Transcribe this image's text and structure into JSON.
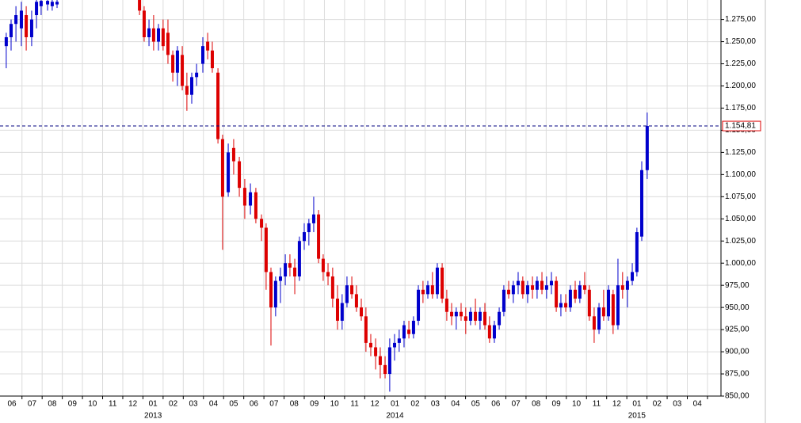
{
  "chart_data": {
    "type": "candlestick",
    "x": [
      -0.28,
      -0.04,
      0.2,
      0.47,
      0.71,
      0.98,
      1.22,
      1.45,
      1.77,
      2.0,
      2.24,
      6.33,
      6.56,
      6.8,
      7.03,
      7.27,
      7.5,
      7.74,
      7.98,
      8.21,
      8.45,
      8.68,
      8.92,
      9.16,
      9.47,
      9.71,
      9.94,
      10.22,
      10.45,
      10.73,
      11.0,
      11.28,
      11.55,
      11.83,
      12.1,
      12.38,
      12.61,
      12.85,
      13.08,
      13.32,
      13.56,
      13.79,
      14.03,
      14.26,
      14.5,
      14.73,
      14.97,
      15.21,
      15.44,
      15.68,
      15.91,
      16.15,
      16.38,
      16.62,
      16.86,
      17.09,
      17.33,
      17.56,
      17.8,
      18.04,
      18.27,
      18.51,
      18.74,
      18.98,
      19.21,
      19.45,
      19.69,
      19.92,
      20.16,
      20.39,
      20.63,
      20.86,
      21.1,
      21.34,
      21.57,
      21.81,
      22.04,
      22.28,
      22.51,
      22.75,
      22.99,
      23.22,
      23.46,
      23.69,
      23.93,
      24.17,
      24.4,
      24.64,
      24.87,
      25.11,
      25.34,
      25.58,
      25.82,
      26.05,
      26.29,
      26.52,
      26.76,
      27.0,
      27.23,
      27.47,
      27.7,
      27.94,
      28.17,
      28.41,
      28.64,
      28.88,
      29.12,
      29.35,
      29.59,
      29.82,
      30.06,
      30.29,
      30.53,
      30.77,
      31.0,
      31.24,
      31.51
    ],
    "open": [
      1245,
      1255,
      1270,
      1265,
      1280,
      1255,
      1280,
      1290,
      1292,
      1290,
      1292,
      1300,
      1285,
      1255,
      1265,
      1250,
      1265,
      1260,
      1235,
      1215,
      1235,
      1200,
      1190,
      1210,
      1225,
      1250,
      1240,
      1215,
      1140,
      1080,
      1130,
      1115,
      1085,
      1065,
      1080,
      1050,
      1040,
      990,
      950,
      980,
      985,
      1000,
      995,
      985,
      1025,
      1035,
      1045,
      1055,
      1005,
      990,
      985,
      960,
      935,
      955,
      975,
      965,
      950,
      940,
      910,
      905,
      895,
      885,
      875,
      905,
      910,
      915,
      925,
      920,
      935,
      970,
      965,
      975,
      965,
      995,
      960,
      945,
      940,
      945,
      940,
      935,
      945,
      935,
      945,
      930,
      915,
      930,
      945,
      970,
      965,
      975,
      980,
      965,
      975,
      970,
      980,
      970,
      975,
      980,
      950,
      955,
      950,
      970,
      960,
      975,
      970,
      940,
      925,
      950,
      940,
      965,
      930,
      975,
      970,
      980,
      990,
      1030,
      1105
    ],
    "high": [
      1260,
      1275,
      1290,
      1295,
      1290,
      1285,
      1300,
      1300,
      1300,
      1300,
      1300,
      1305,
      1290,
      1275,
      1280,
      1270,
      1275,
      1275,
      1240,
      1245,
      1245,
      1215,
      1215,
      1225,
      1255,
      1260,
      1250,
      1220,
      1145,
      1135,
      1140,
      1120,
      1095,
      1090,
      1085,
      1055,
      1045,
      995,
      985,
      995,
      1010,
      1010,
      1005,
      1030,
      1045,
      1050,
      1075,
      1060,
      1010,
      1000,
      995,
      975,
      965,
      985,
      985,
      975,
      960,
      950,
      920,
      915,
      905,
      895,
      915,
      920,
      925,
      935,
      935,
      940,
      975,
      980,
      980,
      990,
      1000,
      1000,
      970,
      955,
      950,
      955,
      950,
      950,
      960,
      950,
      955,
      940,
      935,
      950,
      975,
      980,
      980,
      990,
      985,
      980,
      985,
      985,
      990,
      985,
      990,
      985,
      965,
      965,
      975,
      980,
      980,
      990,
      975,
      950,
      955,
      970,
      975,
      970,
      1005,
      990,
      985,
      1000,
      1040,
      1115,
      1170
    ],
    "low": [
      1220,
      1240,
      1250,
      1245,
      1240,
      1245,
      1265,
      1280,
      1285,
      1285,
      1288,
      1280,
      1250,
      1245,
      1240,
      1240,
      1240,
      1225,
      1205,
      1200,
      1195,
      1172,
      1180,
      1200,
      1215,
      1230,
      1215,
      1135,
      1015,
      1075,
      1100,
      1075,
      1050,
      1055,
      1045,
      1025,
      970,
      907,
      940,
      955,
      975,
      985,
      965,
      980,
      1015,
      1020,
      1035,
      1000,
      980,
      975,
      950,
      925,
      925,
      950,
      960,
      945,
      935,
      900,
      895,
      880,
      870,
      870,
      855,
      890,
      900,
      905,
      915,
      915,
      930,
      955,
      960,
      960,
      960,
      955,
      935,
      930,
      925,
      935,
      920,
      930,
      930,
      925,
      925,
      910,
      910,
      925,
      940,
      960,
      955,
      965,
      960,
      955,
      960,
      960,
      965,
      960,
      965,
      945,
      940,
      945,
      945,
      955,
      955,
      965,
      935,
      910,
      920,
      935,
      935,
      920,
      925,
      960,
      950,
      975,
      985,
      1025,
      1095
    ],
    "close": [
      1255,
      1270,
      1280,
      1285,
      1255,
      1275,
      1295,
      1296,
      1296,
      1295,
      1295,
      1285,
      1255,
      1265,
      1250,
      1265,
      1245,
      1235,
      1215,
      1240,
      1200,
      1190,
      1210,
      1215,
      1245,
      1240,
      1220,
      1140,
      1075,
      1125,
      1115,
      1085,
      1065,
      1080,
      1050,
      1040,
      990,
      950,
      980,
      985,
      1000,
      995,
      985,
      1025,
      1035,
      1045,
      1055,
      1005,
      990,
      985,
      960,
      935,
      955,
      975,
      965,
      950,
      940,
      910,
      905,
      895,
      885,
      875,
      905,
      910,
      915,
      930,
      920,
      935,
      970,
      965,
      975,
      965,
      995,
      960,
      945,
      940,
      945,
      940,
      935,
      945,
      935,
      945,
      930,
      915,
      930,
      945,
      970,
      965,
      975,
      980,
      965,
      975,
      970,
      980,
      970,
      975,
      980,
      950,
      955,
      950,
      970,
      960,
      975,
      970,
      940,
      925,
      950,
      940,
      970,
      930,
      975,
      970,
      980,
      990,
      1035,
      1105,
      1154.81
    ],
    "up_color": "#0000cc",
    "down_color": "#dd0000",
    "xlim": [
      -0.59,
      35.17
    ],
    "ylim": [
      850,
      1297
    ],
    "xticks": [
      {
        "value": 0,
        "label": "06"
      },
      {
        "value": 1,
        "label": "07"
      },
      {
        "value": 2,
        "label": "08"
      },
      {
        "value": 3,
        "label": "09"
      },
      {
        "value": 4,
        "label": "10"
      },
      {
        "value": 5,
        "label": "11"
      },
      {
        "value": 6,
        "label": "12"
      },
      {
        "value": 7,
        "label": "01"
      },
      {
        "value": 8,
        "label": "02"
      },
      {
        "value": 9,
        "label": "03"
      },
      {
        "value": 10,
        "label": "04"
      },
      {
        "value": 11,
        "label": "05"
      },
      {
        "value": 12,
        "label": "06"
      },
      {
        "value": 13,
        "label": "07"
      },
      {
        "value": 14,
        "label": "08"
      },
      {
        "value": 15,
        "label": "09"
      },
      {
        "value": 16,
        "label": "10"
      },
      {
        "value": 17,
        "label": "11"
      },
      {
        "value": 18,
        "label": "12"
      },
      {
        "value": 19,
        "label": "01"
      },
      {
        "value": 20,
        "label": "02"
      },
      {
        "value": 21,
        "label": "03"
      },
      {
        "value": 22,
        "label": "04"
      },
      {
        "value": 23,
        "label": "05"
      },
      {
        "value": 24,
        "label": "06"
      },
      {
        "value": 25,
        "label": "07"
      },
      {
        "value": 26,
        "label": "08"
      },
      {
        "value": 27,
        "label": "09"
      },
      {
        "value": 28,
        "label": "10"
      },
      {
        "value": 29,
        "label": "11"
      },
      {
        "value": 30,
        "label": "12"
      },
      {
        "value": 31,
        "label": "01"
      },
      {
        "value": 32,
        "label": "02"
      },
      {
        "value": 33,
        "label": "03"
      },
      {
        "value": 34,
        "label": "04"
      }
    ],
    "year_ticks": [
      {
        "value": 7,
        "label": "2013"
      },
      {
        "value": 19,
        "label": "2014"
      },
      {
        "value": 31,
        "label": "2015"
      }
    ],
    "yticks": [
      {
        "value": 850,
        "label": "850,00"
      },
      {
        "value": 875,
        "label": "875,00"
      },
      {
        "value": 900,
        "label": "900,00"
      },
      {
        "value": 925,
        "label": "925,00"
      },
      {
        "value": 950,
        "label": "950,00"
      },
      {
        "value": 975,
        "label": "975,00"
      },
      {
        "value": 1000,
        "label": "1.000,00"
      },
      {
        "value": 1025,
        "label": "1.025,00"
      },
      {
        "value": 1050,
        "label": "1.050,00"
      },
      {
        "value": 1075,
        "label": "1.075,00"
      },
      {
        "value": 1100,
        "label": "1.100,00"
      },
      {
        "value": 1125,
        "label": "1.125,00"
      },
      {
        "value": 1150,
        "label": "1.150,00"
      },
      {
        "value": 1175,
        "label": "1.175,00"
      },
      {
        "value": 1200,
        "label": "1.200,00"
      },
      {
        "value": 1225,
        "label": "1.225,00"
      },
      {
        "value": 1250,
        "label": "1.250,00"
      },
      {
        "value": 1275,
        "label": "1.275,00"
      }
    ],
    "last_price": {
      "value": 1154.81,
      "label": "1.154,81"
    },
    "grid": true
  }
}
